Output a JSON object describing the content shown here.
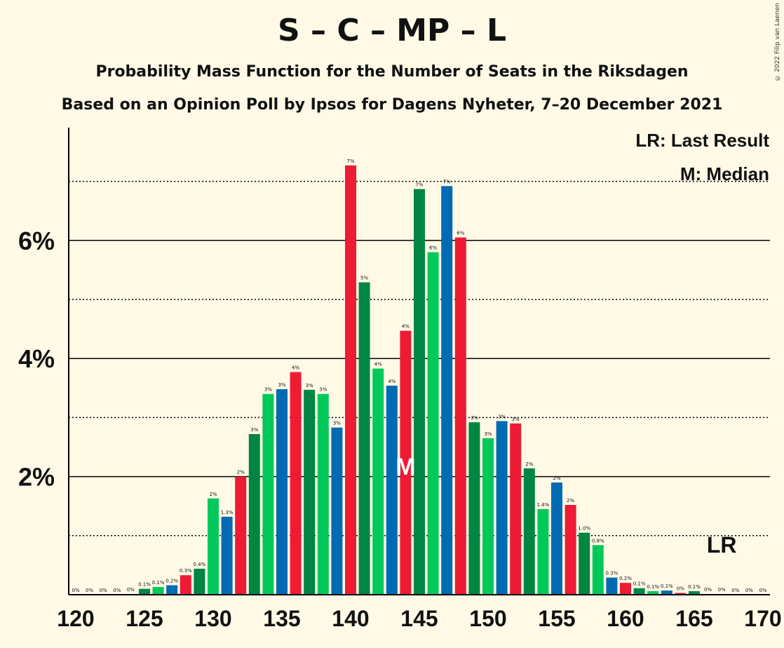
{
  "header": {
    "title": "S – C – MP – L",
    "subtitle": "Probability Mass Function for the Number of Seats in the Riksdagen",
    "subtitle2": "Based on an Opinion Poll by Ipsos for Dagens Nyheter, 7–20 December 2021",
    "copyright": "© 2022 Filip van Laenen"
  },
  "legend": {
    "last_result": "LR: Last Result",
    "median": "M: Median"
  },
  "colors": {
    "background": "#fff9e6",
    "red": "#ed1b34",
    "dark_green": "#008542",
    "light_green": "#00c95a",
    "blue": "#006ab3"
  },
  "chart_data": {
    "type": "bar",
    "x": [
      120,
      121,
      122,
      123,
      124,
      125,
      126,
      127,
      128,
      129,
      130,
      131,
      132,
      133,
      134,
      135,
      136,
      137,
      138,
      139,
      140,
      141,
      142,
      143,
      144,
      145,
      146,
      147,
      148,
      149,
      150,
      151,
      152,
      153,
      154,
      155,
      156,
      157,
      158,
      159,
      160,
      161,
      162,
      163,
      164,
      165,
      166,
      167,
      168,
      169,
      170
    ],
    "values": [
      0,
      0,
      0,
      0,
      0.01,
      0.1,
      0.13,
      0.16,
      0.33,
      0.44,
      1.63,
      1.32,
      2.0,
      2.72,
      3.4,
      3.48,
      3.77,
      3.47,
      3.4,
      2.83,
      7.27,
      5.29,
      3.83,
      3.54,
      4.47,
      6.87,
      5.8,
      6.92,
      6.05,
      2.92,
      2.65,
      2.94,
      2.9,
      2.14,
      1.45,
      1.9,
      1.52,
      1.05,
      0.84,
      0.29,
      0.2,
      0.11,
      0.06,
      0.07,
      0.03,
      0.06,
      0.01,
      0.01,
      0,
      0,
      0
    ],
    "labels": [
      "0%",
      "0%",
      "0%",
      "0%",
      "0%",
      "0.1%",
      "0.1%",
      "0.2%",
      "0.3%",
      "0.4%",
      "2%",
      "1.3%",
      "2%",
      "3%",
      "3%",
      "3%",
      "4%",
      "3%",
      "3%",
      "3%",
      "7%",
      "5%",
      "4%",
      "4%",
      "4%",
      "7%",
      "6%",
      "7%",
      "6%",
      "3%",
      "3%",
      "3%",
      "3%",
      "2%",
      "1.4%",
      "2%",
      "2%",
      "1.0%",
      "0.8%",
      "0.3%",
      "0.2%",
      "0.1%",
      "0.1%",
      "0.1%",
      "0%",
      "0.1%",
      "0%",
      "0%",
      "0%",
      "0%",
      "0%"
    ],
    "bar_colors": [
      "#ed1b34",
      "#008542",
      "#00c95a",
      "#006ab3",
      "#ed1b34",
      "#008542",
      "#00c95a",
      "#006ab3",
      "#ed1b34",
      "#008542",
      "#00c95a",
      "#006ab3",
      "#ed1b34",
      "#008542",
      "#00c95a",
      "#006ab3",
      "#ed1b34",
      "#008542",
      "#00c95a",
      "#006ab3",
      "#ed1b34",
      "#008542",
      "#00c95a",
      "#006ab3",
      "#ed1b34",
      "#008542",
      "#00c95a",
      "#006ab3",
      "#ed1b34",
      "#008542",
      "#00c95a",
      "#006ab3",
      "#ed1b34",
      "#008542",
      "#00c95a",
      "#006ab3",
      "#ed1b34",
      "#008542",
      "#00c95a",
      "#006ab3",
      "#ed1b34",
      "#008542",
      "#00c95a",
      "#006ab3",
      "#ed1b34",
      "#008542",
      "#00c95a",
      "#006ab3",
      "#ed1b34",
      "#008542",
      "#00c95a"
    ],
    "xticks": [
      "120",
      "125",
      "130",
      "135",
      "140",
      "145",
      "150",
      "155",
      "160",
      "165",
      "170"
    ],
    "yticks": [
      "2%",
      "4%",
      "6%"
    ],
    "ylim": [
      0,
      8
    ],
    "median_seat": 144,
    "median_marker": "M",
    "last_result_seat": 167,
    "last_result_marker": "LR",
    "grid": "solid at 2%, 4%, 6%; dotted at 1%, 3%, 5%, 7%"
  }
}
